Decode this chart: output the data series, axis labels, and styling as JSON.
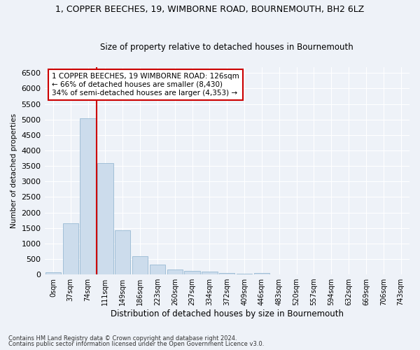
{
  "title1": "1, COPPER BEECHES, 19, WIMBORNE ROAD, BOURNEMOUTH, BH2 6LZ",
  "title2": "Size of property relative to detached houses in Bournemouth",
  "xlabel": "Distribution of detached houses by size in Bournemouth",
  "ylabel": "Number of detached properties",
  "footnote1": "Contains HM Land Registry data © Crown copyright and database right 2024.",
  "footnote2": "Contains public sector information licensed under the Open Government Licence v3.0.",
  "bar_labels": [
    "0sqm",
    "37sqm",
    "74sqm",
    "111sqm",
    "149sqm",
    "186sqm",
    "223sqm",
    "260sqm",
    "297sqm",
    "334sqm",
    "372sqm",
    "409sqm",
    "446sqm",
    "483sqm",
    "520sqm",
    "557sqm",
    "594sqm",
    "632sqm",
    "669sqm",
    "706sqm",
    "743sqm"
  ],
  "bar_values": [
    75,
    1650,
    5050,
    3600,
    1420,
    600,
    310,
    165,
    120,
    90,
    55,
    30,
    50,
    0,
    0,
    0,
    0,
    0,
    0,
    0,
    0
  ],
  "bar_color": "#ccdcec",
  "bar_edge_color": "#8ab0cc",
  "vline_x_index": 3,
  "vline_color": "#cc0000",
  "ylim": [
    0,
    6700
  ],
  "yticks": [
    0,
    500,
    1000,
    1500,
    2000,
    2500,
    3000,
    3500,
    4000,
    4500,
    5000,
    5500,
    6000,
    6500
  ],
  "annotation_title": "1 COPPER BEECHES, 19 WIMBORNE ROAD: 126sqm",
  "annotation_line1": "← 66% of detached houses are smaller (8,430)",
  "annotation_line2": "34% of semi-detached houses are larger (4,353) →",
  "background_color": "#eef2f8"
}
